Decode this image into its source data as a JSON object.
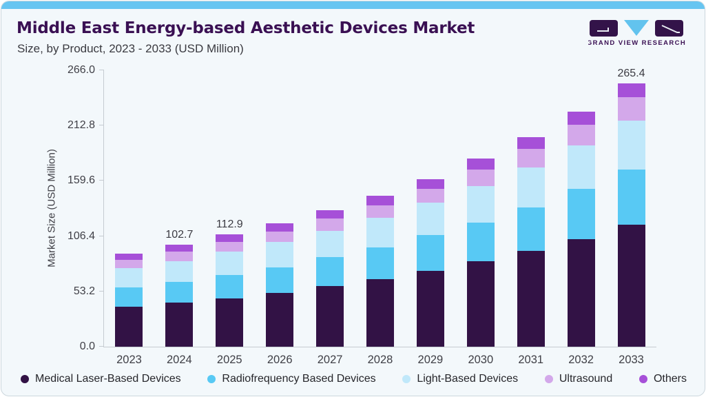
{
  "header": {
    "title": "Middle East Energy-based Aesthetic Devices Market",
    "subtitle": "Size, by Product, 2023 - 2033 (USD Million)",
    "logo_text": "GRAND VIEW RESEARCH"
  },
  "colors": {
    "accent_strip": "#67c5f1",
    "title_text": "#3a1053",
    "logo_block": "#331349",
    "logo_triangle": "#62c3ee",
    "medical_laser": "#321245",
    "radiofrequency": "#58c9f4",
    "light_based": "#c0e8fa",
    "ultrasound": "#d3a8ea",
    "others": "#a650d8"
  },
  "chart_data": {
    "type": "bar",
    "stacked": true,
    "title": "Middle East Energy-based Aesthetic Devices Market Size, by Product, 2023 - 2033 (USD Million)",
    "xlabel": "",
    "ylabel": "Market Size (USD Million)",
    "ylim": [
      0,
      266
    ],
    "grid": false,
    "legend_position": "bottom",
    "yticks": [
      0.0,
      53.2,
      106.4,
      159.6,
      212.8,
      266.0
    ],
    "ytick_labels": [
      "0.0",
      "53.2",
      "106.4",
      "159.6",
      "212.8",
      "266.0"
    ],
    "categories": [
      "2023",
      "2024",
      "2025",
      "2026",
      "2027",
      "2028",
      "2029",
      "2030",
      "2031",
      "2032",
      "2033"
    ],
    "series": [
      {
        "name": "Medical Laser-Based Devices",
        "color_key": "medical_laser",
        "values": [
          40.5,
          44.3,
          48.8,
          54.1,
          61.0,
          68.0,
          76.1,
          85.8,
          96.2,
          108.6,
          123.0
        ]
      },
      {
        "name": "Radiofrequency Based Devices",
        "color_key": "radiofrequency",
        "values": [
          19.3,
          21.2,
          23.5,
          26.0,
          29.0,
          31.7,
          36.5,
          39.5,
          44.1,
          50.3,
          55.6
        ]
      },
      {
        "name": "Light-Based Devices",
        "color_key": "light_based",
        "values": [
          19.3,
          20.9,
          23.6,
          25.5,
          26.7,
          30.2,
          32.7,
          36.2,
          40.6,
          44.1,
          49.5
        ]
      },
      {
        "name": "Ultrasound",
        "color_key": "ultrasound",
        "values": [
          8.1,
          9.3,
          10.0,
          10.4,
          12.3,
          12.7,
          13.8,
          17.2,
          18.1,
          20.4,
          23.2
        ]
      },
      {
        "name": "Others",
        "color_key": "others",
        "values": [
          6.7,
          7.0,
          7.0,
          8.4,
          8.6,
          9.3,
          10.0,
          11.1,
          12.0,
          13.2,
          14.1
        ]
      }
    ],
    "total_labels": {
      "2024": "102.7",
      "2025": "112.9",
      "2033": "265.4"
    }
  },
  "legend": {
    "items": [
      {
        "label": "Medical Laser-Based Devices",
        "color_key": "medical_laser"
      },
      {
        "label": "Radiofrequency Based Devices",
        "color_key": "radiofrequency"
      },
      {
        "label": "Light-Based Devices",
        "color_key": "light_based"
      },
      {
        "label": "Ultrasound",
        "color_key": "ultrasound"
      },
      {
        "label": "Others",
        "color_key": "others"
      }
    ]
  }
}
